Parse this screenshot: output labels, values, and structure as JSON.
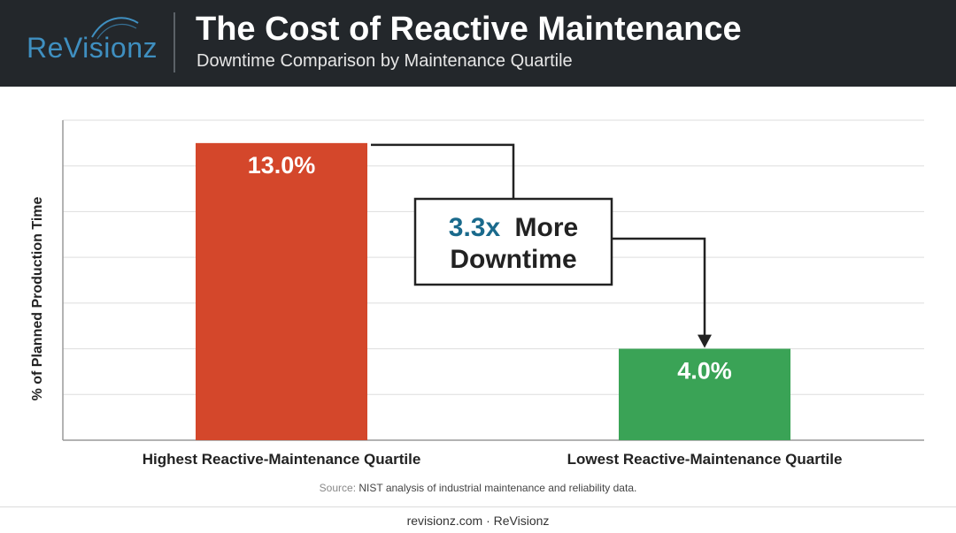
{
  "header": {
    "logo_text": "REVISIONZ",
    "title": "The Cost of Reactive Maintenance",
    "subtitle": "Downtime Comparison by Maintenance Quartile"
  },
  "chart_data": {
    "type": "bar",
    "title": "The Cost of Reactive Maintenance",
    "subtitle": "Downtime Comparison by Maintenance Quartile",
    "categories": [
      "Highest Reactive-Maintenance Quartile",
      "Lowest Reactive-Maintenance Quartile"
    ],
    "values": [
      13.0,
      4.0
    ],
    "value_labels": [
      "13.0%",
      "4.0%"
    ],
    "colors": [
      "#d4472b",
      "#3aa356"
    ],
    "xlabel": "",
    "ylabel": "% of Planned Production Time",
    "ylim": [
      0,
      14
    ],
    "grid": true,
    "annotation": {
      "highlight": "3.3x",
      "text_rest": "More",
      "text_line2": "Downtime",
      "highlight_color": "#1a6a8c"
    }
  },
  "source": {
    "label": "Source:",
    "text": "NIST analysis of industrial maintenance and reliability data."
  },
  "footer": {
    "text": "revisionz.com · ReVisionz"
  }
}
